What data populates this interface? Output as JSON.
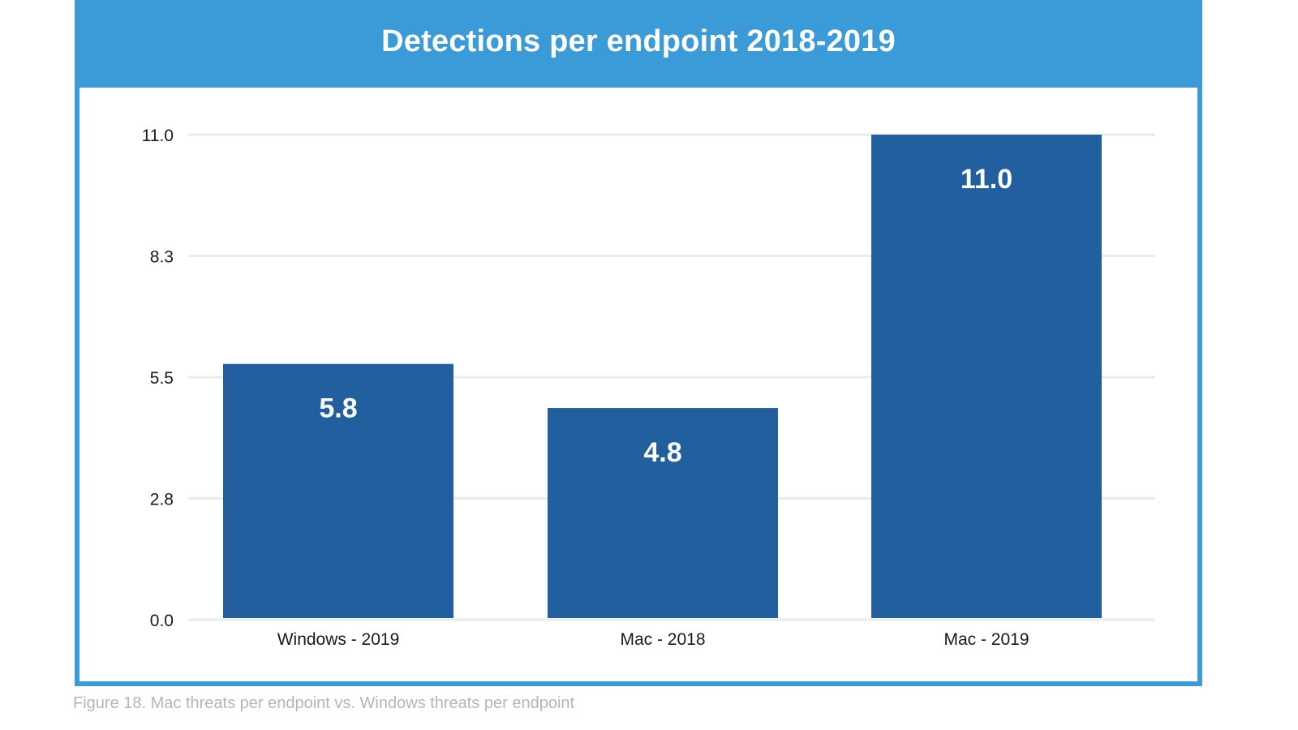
{
  "chart_data": {
    "type": "bar",
    "title": "Detections per endpoint 2018-2019",
    "categories": [
      "Windows - 2019",
      "Mac - 2018",
      "Mac - 2019"
    ],
    "values": [
      5.8,
      4.8,
      11.0
    ],
    "value_labels": [
      "5.8",
      "4.8",
      "11.0"
    ],
    "y_ticks": [
      "0.0",
      "2.8",
      "5.5",
      "8.3",
      "11.0"
    ],
    "y_tick_values": [
      0,
      2.75,
      5.5,
      8.25,
      11.0
    ],
    "ylim": [
      0,
      11.0
    ],
    "xlabel": "",
    "ylabel": "",
    "grid": true,
    "legend": "none",
    "colors": {
      "bar": "#215f9e",
      "header": "#3a9bd8",
      "grid": "#ebebeb"
    }
  },
  "caption": "Figure 18. Mac threats per endpoint vs. Windows threats per endpoint"
}
